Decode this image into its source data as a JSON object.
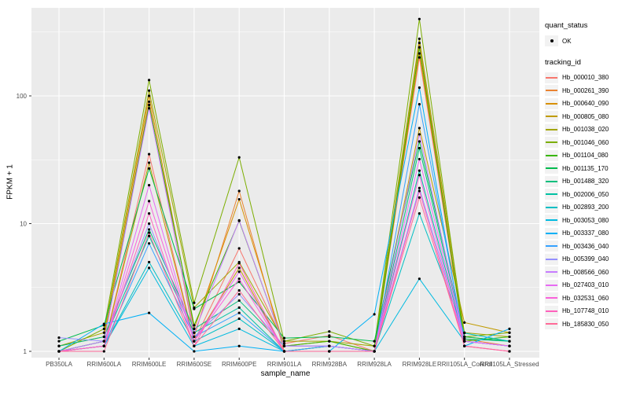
{
  "axes": {
    "y_ticks": [
      "1",
      "10",
      "100"
    ],
    "tick_color": "#4D4D4D",
    "panel_color": "#EBEBEB",
    "grid_color": "#FFFFFF"
  },
  "legend": {
    "quant_title": "quant_status",
    "quant_label": "OK",
    "tracking_title": "tracking_id"
  },
  "chart_data": {
    "type": "line",
    "title": "",
    "xlabel": "sample_name",
    "ylabel": "FPKM + 1",
    "y_scale": "log10",
    "ylim": [
      1,
      450
    ],
    "y_major_gridlines": [
      1,
      10,
      100
    ],
    "y_minor_gridlines": [
      3.162,
      31.62,
      316.2
    ],
    "grid": true,
    "legend_position": "right",
    "point_marker": "black dot (quant_status OK)",
    "x": [
      "PB350LA",
      "RRIM600LA",
      "RRIM600LE",
      "RRIM600SE",
      "RRIM600PE",
      "RRIM901LA",
      "RRIM928BA",
      "RRIM928LA",
      "RRIM928LE",
      "RRII105LA_Control",
      "RRII105LA_Stressed"
    ],
    "series": [
      {
        "name": "Hb_000010_380",
        "color": "#F8766D",
        "values": [
          1.0,
          1.1,
          35,
          1.2,
          6.4,
          1.15,
          1.33,
          1.0,
          200,
          1.2,
          1.1
        ]
      },
      {
        "name": "Hb_000261_390",
        "color": "#EA8331",
        "values": [
          1.0,
          1.2,
          90,
          1.3,
          18,
          1.0,
          1.1,
          1.0,
          260,
          1.25,
          1.1
        ]
      },
      {
        "name": "Hb_000640_090",
        "color": "#D89000",
        "values": [
          1.1,
          1.3,
          100,
          1.5,
          15.5,
          1.1,
          1.2,
          1.0,
          215,
          1.3,
          1.2
        ]
      },
      {
        "name": "Hb_000805_080",
        "color": "#C09B00",
        "values": [
          1.0,
          1.1,
          30,
          1.2,
          4.5,
          1.0,
          1.1,
          1.0,
          56,
          1.68,
          1.4
        ]
      },
      {
        "name": "Hb_001038_020",
        "color": "#A3A500",
        "values": [
          1.1,
          1.4,
          110,
          2.2,
          5.0,
          1.2,
          1.2,
          1.1,
          280,
          1.4,
          1.3
        ]
      },
      {
        "name": "Hb_001046_060",
        "color": "#7CAE00",
        "values": [
          1.0,
          1.5,
          133,
          2.4,
          33,
          1.2,
          1.43,
          1.1,
          400,
          1.3,
          1.4
        ]
      },
      {
        "name": "Hb_001104_080",
        "color": "#39B600",
        "values": [
          1.0,
          1.2,
          85,
          1.6,
          10.5,
          1.1,
          1.2,
          1.0,
          240,
          1.2,
          1.3
        ]
      },
      {
        "name": "Hb_001135_170",
        "color": "#00BB4E",
        "values": [
          1.2,
          1.6,
          27,
          2.15,
          3.5,
          1.27,
          1.3,
          1.2,
          44,
          1.3,
          1.2
        ]
      },
      {
        "name": "Hb_001488_320",
        "color": "#00BF7D",
        "values": [
          1.1,
          1.3,
          9.0,
          1.5,
          2.5,
          1.1,
          1.1,
          1.0,
          39,
          1.25,
          1.2
        ]
      },
      {
        "name": "Hb_002006_050",
        "color": "#00C1A3",
        "values": [
          1.0,
          1.2,
          8.0,
          1.4,
          2.2,
          1.0,
          1.1,
          1.0,
          26,
          1.2,
          1.1
        ]
      },
      {
        "name": "Hb_002893_200",
        "color": "#00BFC4",
        "values": [
          1.0,
          1.1,
          5.0,
          1.2,
          1.8,
          1.0,
          1.0,
          1.0,
          12,
          1.39,
          1.2
        ]
      },
      {
        "name": "Hb_003053_080",
        "color": "#00BAE0",
        "values": [
          1.0,
          1.1,
          4.5,
          1.1,
          1.5,
          1.0,
          1.0,
          1.0,
          3.7,
          1.2,
          1.1
        ]
      },
      {
        "name": "Hb_003337_080",
        "color": "#00B0F6",
        "values": [
          1.0,
          1.64,
          2.0,
          1.0,
          1.1,
          1.0,
          1.0,
          1.95,
          116,
          1.1,
          1.5
        ]
      },
      {
        "name": "Hb_003436_040",
        "color": "#35A2FF",
        "values": [
          1.0,
          1.1,
          7.0,
          1.3,
          2.0,
          1.0,
          1.1,
          1.0,
          86,
          1.2,
          1.1
        ]
      },
      {
        "name": "Hb_005399_040",
        "color": "#9590FF",
        "values": [
          1.28,
          1.2,
          10,
          1.3,
          2.8,
          1.1,
          1.1,
          1.0,
          19,
          1.2,
          1.1
        ]
      },
      {
        "name": "Hb_008566_060",
        "color": "#C77CFF",
        "values": [
          1.0,
          1.2,
          80,
          1.4,
          10.6,
          1.1,
          1.1,
          1.0,
          50,
          1.2,
          1.1
        ]
      },
      {
        "name": "Hb_027403_010",
        "color": "#E76BF3",
        "values": [
          1.0,
          1.1,
          20,
          1.2,
          4.2,
          1.0,
          1.0,
          1.0,
          32,
          1.2,
          1.1
        ]
      },
      {
        "name": "Hb_032531_060",
        "color": "#FA62DB",
        "values": [
          1.0,
          1.1,
          15,
          1.2,
          3.7,
          1.0,
          1.0,
          1.0,
          24,
          1.1,
          1.0
        ]
      },
      {
        "name": "Hb_107748_010",
        "color": "#FF62BC",
        "values": [
          1.0,
          1.1,
          12,
          1.1,
          4.9,
          1.0,
          1.0,
          1.0,
          18,
          1.1,
          1.0
        ]
      },
      {
        "name": "Hb_185830_050",
        "color": "#FF6A98",
        "values": [
          1.0,
          1.0,
          8.5,
          1.1,
          3.0,
          1.0,
          1.0,
          1.0,
          16,
          1.1,
          1.0
        ]
      }
    ]
  }
}
